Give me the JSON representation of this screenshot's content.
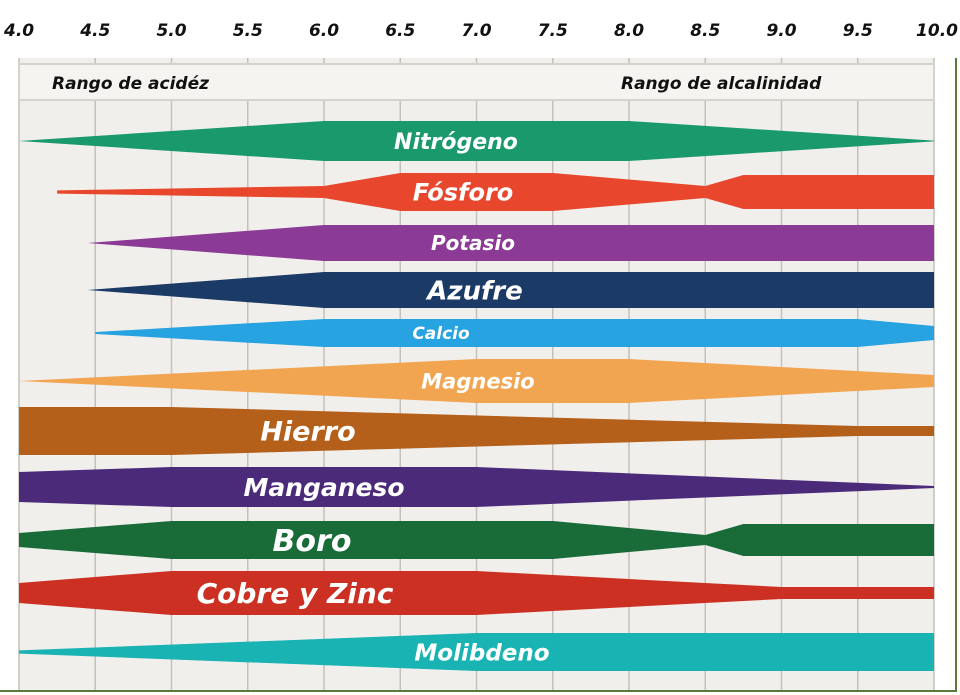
{
  "chart_data": {
    "type": "area",
    "title": "",
    "xlabel": "",
    "ylabel": "",
    "x_axis_position": "top",
    "xlim": [
      4.0,
      10.0
    ],
    "x_ticks": [
      "4.0",
      "4.5",
      "5.0",
      "5.5",
      "6.0",
      "6.5",
      "7.0",
      "7.5",
      "8.0",
      "8.5",
      "9.0",
      "9.5",
      "10.0"
    ],
    "grid": true,
    "annotations": {
      "acid": "Rango de acidéz",
      "alkaline": "Rango de alcalinidad"
    },
    "value_meaning": "relative band thickness (0-1) at each pH",
    "series": [
      {
        "name": "Nitrógeno",
        "color": "#1a9a6c",
        "points": [
          [
            4.0,
            0
          ],
          [
            6.0,
            1
          ],
          [
            8.0,
            1
          ],
          [
            10.0,
            0.02
          ]
        ]
      },
      {
        "name": "Fósforo",
        "color": "#e8472e",
        "points": [
          [
            4.25,
            0.08
          ],
          [
            6.0,
            0.3
          ],
          [
            6.5,
            0.95
          ],
          [
            7.5,
            0.95
          ],
          [
            8.5,
            0.3
          ],
          [
            8.75,
            0.85
          ],
          [
            10.0,
            0.85
          ]
        ]
      },
      {
        "name": "Potasio",
        "color": "#8b3a96",
        "points": [
          [
            4.45,
            0
          ],
          [
            6.0,
            0.9
          ],
          [
            10.0,
            0.9
          ]
        ]
      },
      {
        "name": "Azufre",
        "color": "#1b3a66",
        "points": [
          [
            4.45,
            0
          ],
          [
            6.0,
            0.9
          ],
          [
            10.0,
            0.9
          ]
        ]
      },
      {
        "name": "Calcio",
        "color": "#26a3e0",
        "points": [
          [
            4.5,
            0.05
          ],
          [
            6.0,
            0.7
          ],
          [
            9.5,
            0.7
          ],
          [
            10.0,
            0.35
          ]
        ]
      },
      {
        "name": "Magnesio",
        "color": "#f2a550",
        "points": [
          [
            4.0,
            0
          ],
          [
            7.0,
            1.1
          ],
          [
            8.0,
            1.1
          ],
          [
            10.0,
            0.3
          ]
        ]
      },
      {
        "name": "Hierro",
        "color": "#b5601a",
        "points": [
          [
            4.0,
            1.2
          ],
          [
            5.0,
            1.2
          ],
          [
            9.5,
            0.25
          ],
          [
            10.0,
            0.25
          ]
        ]
      },
      {
        "name": "Manganeso",
        "color": "#4b2a7a",
        "points": [
          [
            4.0,
            0.75
          ],
          [
            5.0,
            1
          ],
          [
            7.0,
            1
          ],
          [
            10.0,
            0.05
          ]
        ]
      },
      {
        "name": "Boro",
        "color": "#196b38",
        "points": [
          [
            4.0,
            0.35
          ],
          [
            5.0,
            0.95
          ],
          [
            7.5,
            0.95
          ],
          [
            8.5,
            0.25
          ],
          [
            8.75,
            0.8
          ],
          [
            10.0,
            0.8
          ]
        ]
      },
      {
        "name": "Cobre y Zinc",
        "color": "#cc3022",
        "points": [
          [
            4.0,
            0.5
          ],
          [
            5.0,
            1.1
          ],
          [
            7.0,
            1.1
          ],
          [
            9.0,
            0.3
          ],
          [
            10.0,
            0.3
          ]
        ]
      },
      {
        "name": "Molibdeno",
        "color": "#1ab3b3",
        "points": [
          [
            4.0,
            0.08
          ],
          [
            7.0,
            0.95
          ],
          [
            10.0,
            0.95
          ]
        ]
      }
    ]
  }
}
